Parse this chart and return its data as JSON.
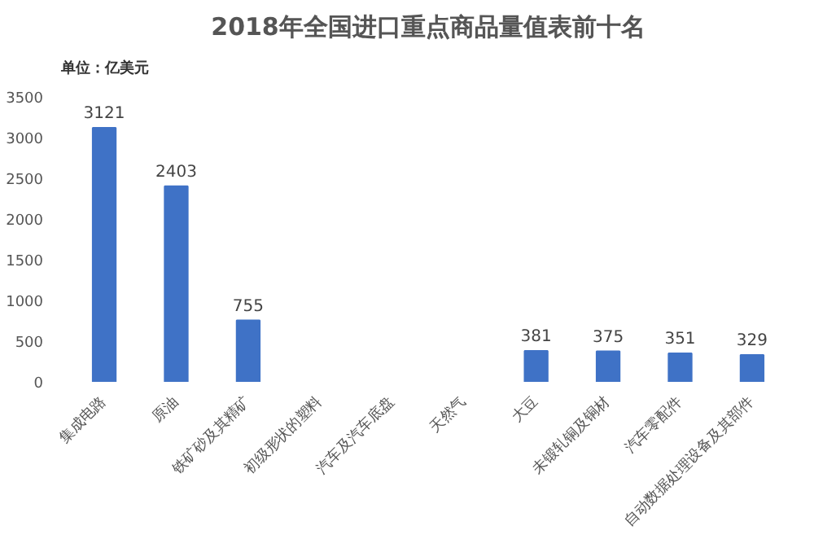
{
  "chart_data": {
    "type": "bar",
    "title": "2018年全国进口重点商品量值表前十名",
    "subtitle": "单位：亿美元",
    "categories": [
      "集成电路",
      "原油",
      "铁矿砂及其精矿",
      "初级形状的塑料",
      "汽车及汽车底盘",
      "天然气",
      "大豆",
      "未锻轧铜及铜材",
      "汽车零配件",
      "自动数据处理设备及其部件"
    ],
    "values": [
      3121,
      2403,
      755,
      null,
      null,
      null,
      381,
      375,
      351,
      329
    ],
    "color": "#3f72c6",
    "ylim": [
      0,
      3500
    ],
    "yticks": [
      0,
      500,
      1000,
      1500,
      2000,
      2500,
      3000,
      3500
    ],
    "grid": false,
    "data_labels": true
  }
}
